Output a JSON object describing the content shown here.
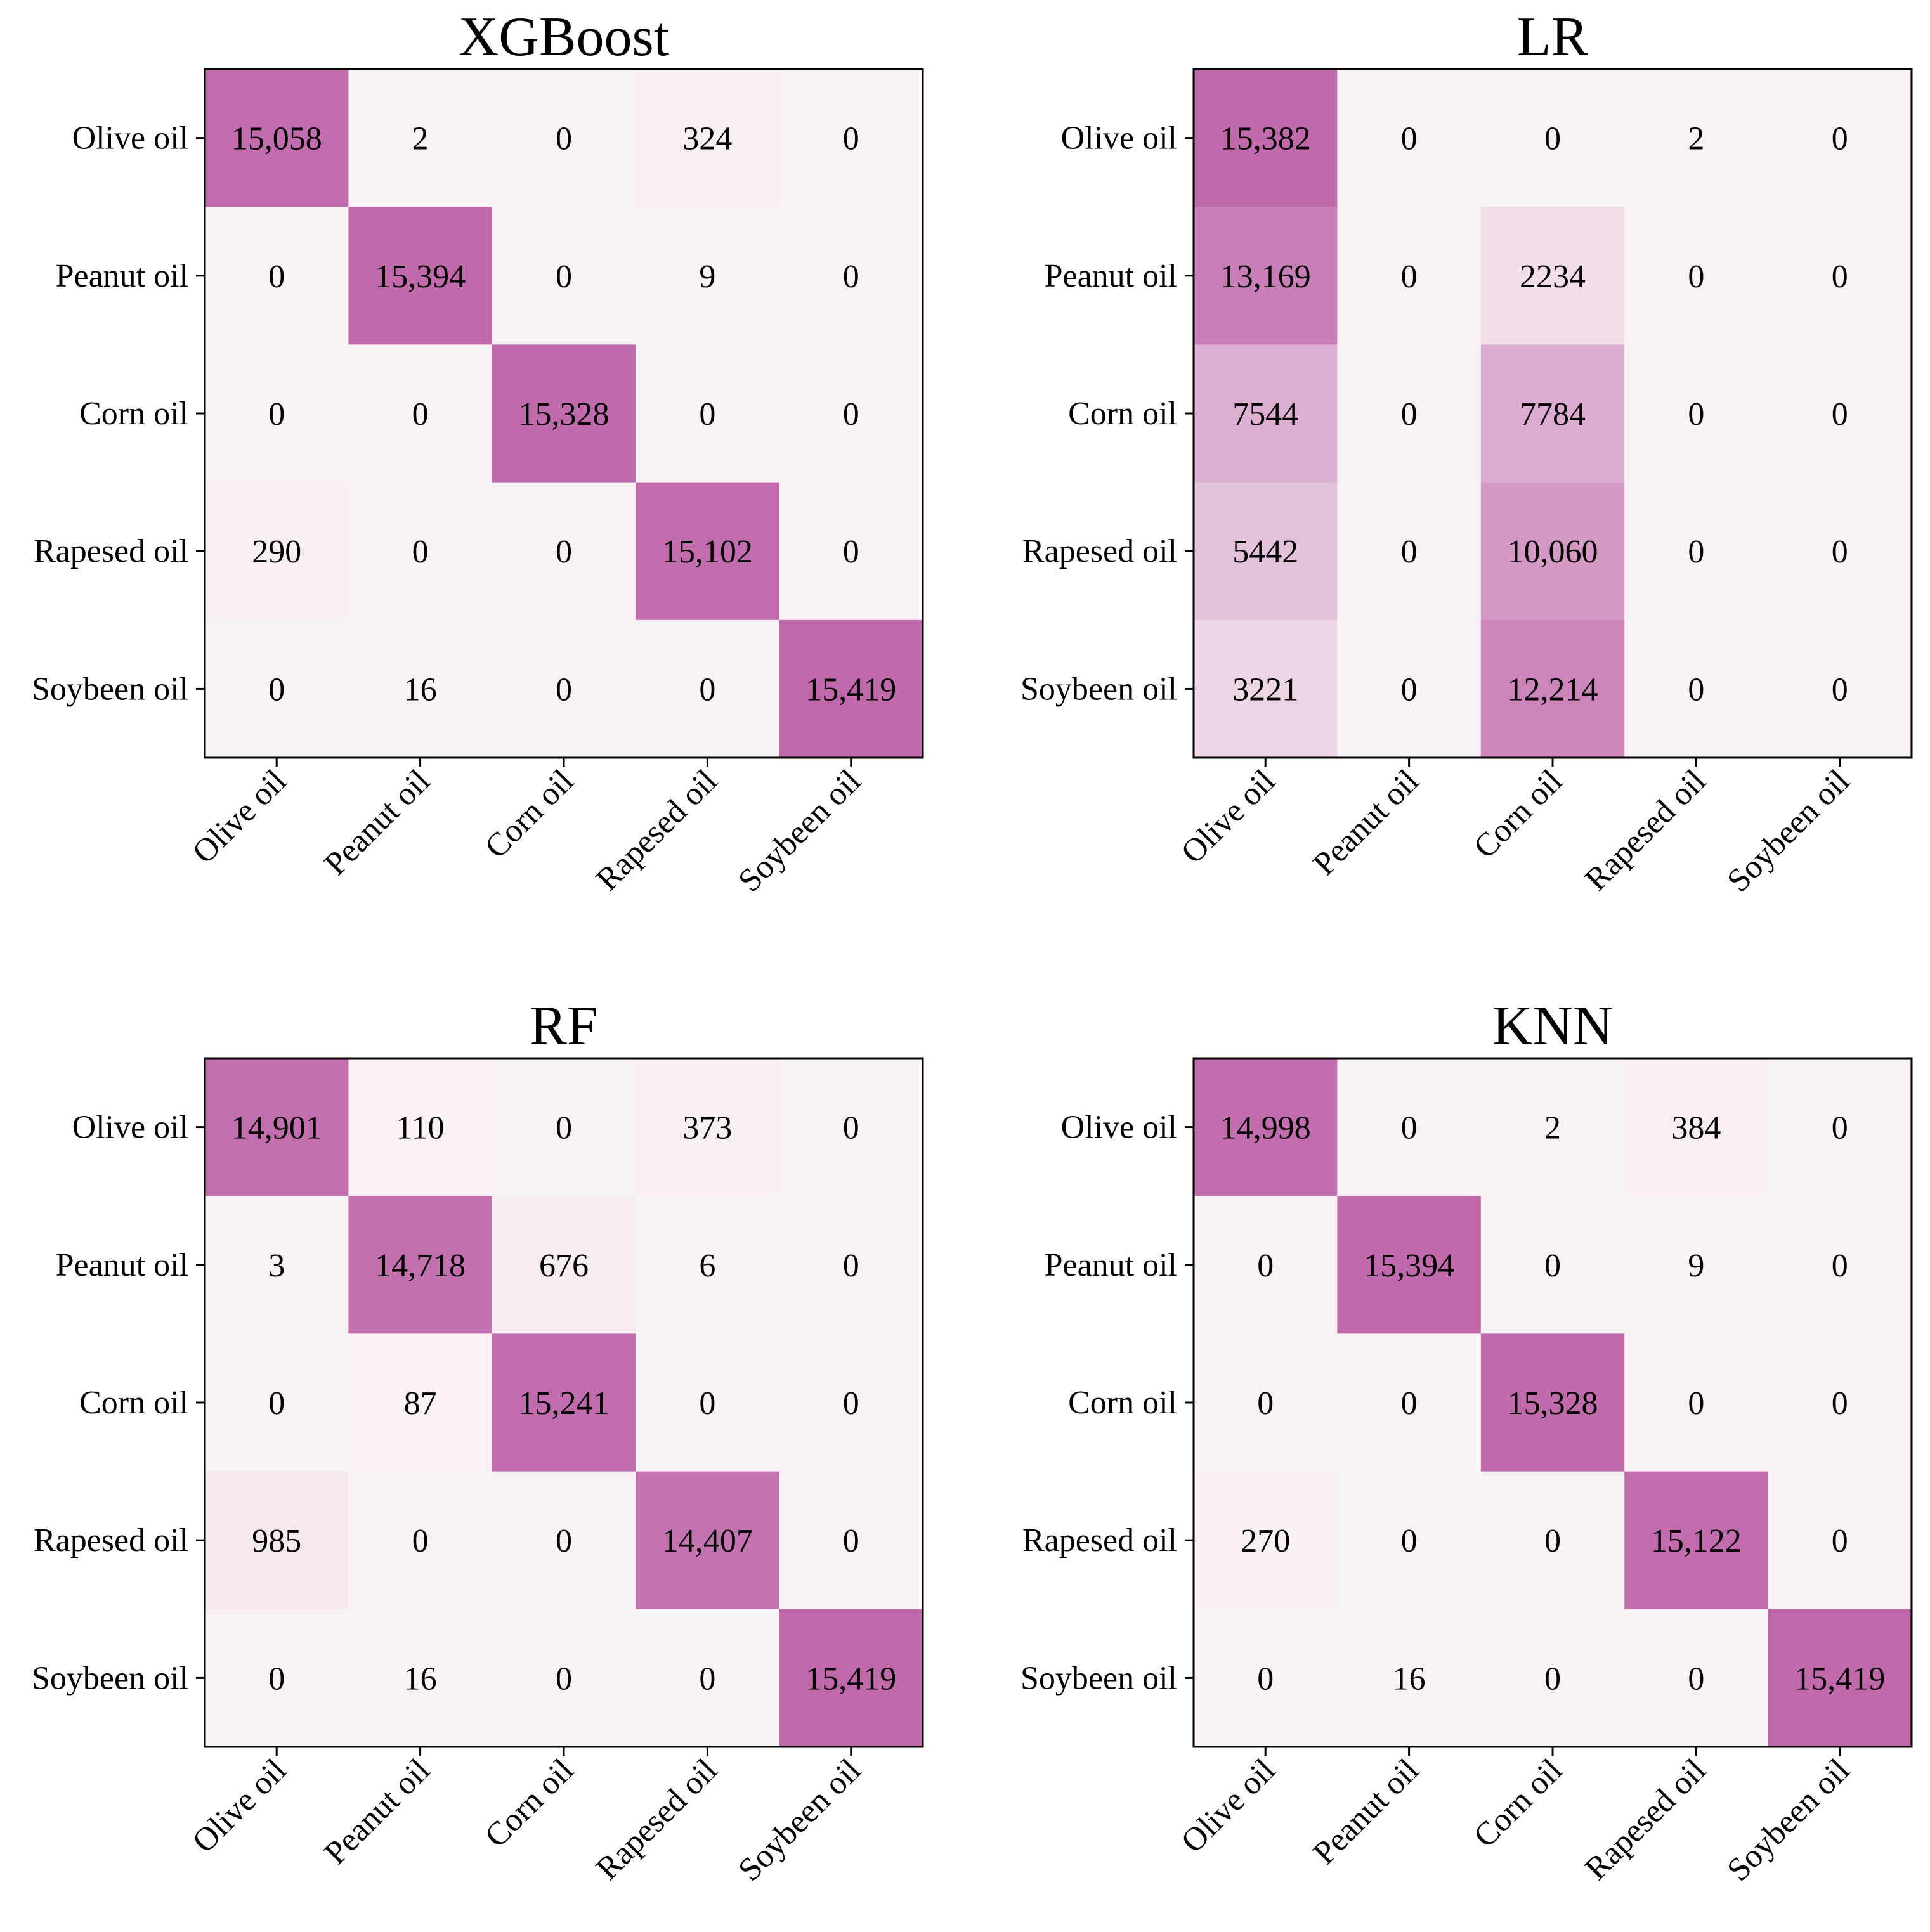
{
  "colors": {
    "cell_low": "#f9f2f4",
    "cell_high": "#c06aac",
    "frame": "#000000",
    "text": "#000000"
  },
  "chart_data": [
    {
      "type": "heatmap",
      "title": "XGBoost",
      "row_labels": [
        "Olive oil",
        "Peanut oil",
        "Corn oil",
        "Rapesed oil",
        "Soybeen oil"
      ],
      "col_labels": [
        "Olive oil",
        "Peanut oil",
        "Corn oil",
        "Rapesed oil",
        "Soybeen oil"
      ],
      "values": [
        [
          15058,
          2,
          0,
          324,
          0
        ],
        [
          0,
          15394,
          0,
          9,
          0
        ],
        [
          0,
          0,
          15328,
          0,
          0
        ],
        [
          290,
          0,
          0,
          15102,
          0
        ],
        [
          0,
          16,
          0,
          0,
          15419
        ]
      ],
      "value_labels": [
        [
          "15,058",
          "2",
          "0",
          "324",
          "0"
        ],
        [
          "0",
          "15,394",
          "0",
          "9",
          "0"
        ],
        [
          "0",
          "0",
          "15,328",
          "0",
          "0"
        ],
        [
          "290",
          "0",
          "0",
          "15,102",
          "0"
        ],
        [
          "0",
          "16",
          "0",
          "0",
          "15,419"
        ]
      ]
    },
    {
      "type": "heatmap",
      "title": "LR",
      "row_labels": [
        "Olive oil",
        "Peanut oil",
        "Corn oil",
        "Rapesed oil",
        "Soybeen oil"
      ],
      "col_labels": [
        "Olive oil",
        "Peanut oil",
        "Corn oil",
        "Rapesed oil",
        "Soybeen oil"
      ],
      "values": [
        [
          15382,
          0,
          0,
          2,
          0
        ],
        [
          13169,
          0,
          2234,
          0,
          0
        ],
        [
          7544,
          0,
          7784,
          0,
          0
        ],
        [
          5442,
          0,
          10060,
          0,
          0
        ],
        [
          3221,
          0,
          12214,
          0,
          0
        ]
      ],
      "value_labels": [
        [
          "15,382",
          "0",
          "0",
          "2",
          "0"
        ],
        [
          "13,169",
          "0",
          "2234",
          "0",
          "0"
        ],
        [
          "7544",
          "0",
          "7784",
          "0",
          "0"
        ],
        [
          "5442",
          "0",
          "10,060",
          "0",
          "0"
        ],
        [
          "3221",
          "0",
          "12,214",
          "0",
          "0"
        ]
      ]
    },
    {
      "type": "heatmap",
      "title": "RF",
      "row_labels": [
        "Olive oil",
        "Peanut oil",
        "Corn oil",
        "Rapesed oil",
        "Soybeen oil"
      ],
      "col_labels": [
        "Olive oil",
        "Peanut oil",
        "Corn oil",
        "Rapesed oil",
        "Soybeen oil"
      ],
      "values": [
        [
          14901,
          110,
          0,
          373,
          0
        ],
        [
          3,
          14718,
          676,
          6,
          0
        ],
        [
          0,
          87,
          15241,
          0,
          0
        ],
        [
          985,
          0,
          0,
          14407,
          0
        ],
        [
          0,
          16,
          0,
          0,
          15419
        ]
      ],
      "value_labels": [
        [
          "14,901",
          "110",
          "0",
          "373",
          "0"
        ],
        [
          "3",
          "14,718",
          "676",
          "6",
          "0"
        ],
        [
          "0",
          "87",
          "15,241",
          "0",
          "0"
        ],
        [
          "985",
          "0",
          "0",
          "14,407",
          "0"
        ],
        [
          "0",
          "16",
          "0",
          "0",
          "15,419"
        ]
      ]
    },
    {
      "type": "heatmap",
      "title": "KNN",
      "row_labels": [
        "Olive oil",
        "Peanut oil",
        "Corn oil",
        "Rapesed oil",
        "Soybeen oil"
      ],
      "col_labels": [
        "Olive oil",
        "Peanut oil",
        "Corn oil",
        "Rapesed oil",
        "Soybeen oil"
      ],
      "values": [
        [
          14998,
          0,
          2,
          384,
          0
        ],
        [
          0,
          15394,
          0,
          9,
          0
        ],
        [
          0,
          0,
          15328,
          0,
          0
        ],
        [
          270,
          0,
          0,
          15122,
          0
        ],
        [
          0,
          16,
          0,
          0,
          15419
        ]
      ],
      "value_labels": [
        [
          "14,998",
          "0",
          "2",
          "384",
          "0"
        ],
        [
          "0",
          "15,394",
          "0",
          "9",
          "0"
        ],
        [
          "0",
          "0",
          "15,328",
          "0",
          "0"
        ],
        [
          "270",
          "0",
          "0",
          "15,122",
          "0"
        ],
        [
          "0",
          "16",
          "0",
          "0",
          "15,419"
        ]
      ]
    }
  ]
}
